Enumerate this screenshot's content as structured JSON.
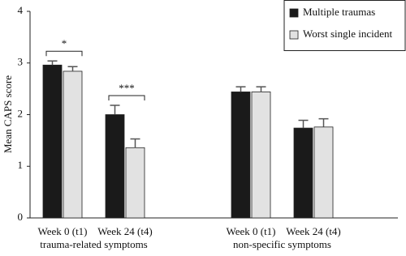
{
  "chart_data": {
    "type": "bar",
    "y_label": "Mean CAPS score",
    "categories": [
      "Week 0 (t1)",
      "Week 24 (t4)",
      "Week 0 (t1)",
      "Week 24 (t4)"
    ],
    "groups": [
      "trauma-related symptoms",
      "non-specific symptoms"
    ],
    "series": [
      {
        "name": "Multiple traumas",
        "color": "#1a1a1a",
        "values": [
          2.96,
          2.0,
          2.44,
          1.74
        ],
        "errors": [
          0.08,
          0.18,
          0.1,
          0.15
        ]
      },
      {
        "name": "Worst single incident",
        "color": "#e2e2e2",
        "values": [
          2.84,
          1.36,
          2.44,
          1.76
        ],
        "errors": [
          0.09,
          0.17,
          0.1,
          0.16
        ]
      }
    ],
    "annotations": [
      "*",
      "***"
    ],
    "ylim": [
      0,
      4
    ],
    "yticks": [
      0,
      1,
      2,
      3,
      4
    ],
    "grid": false
  }
}
